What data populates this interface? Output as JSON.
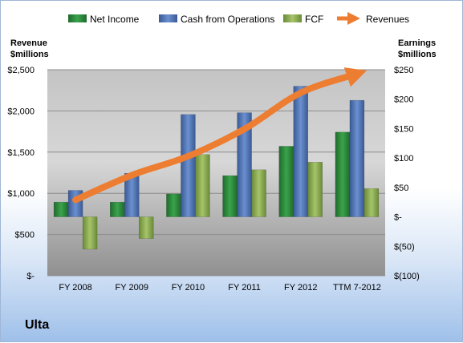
{
  "company_label": "Ulta",
  "chart_data": {
    "type": "bar",
    "categories": [
      "FY 2008",
      "FY 2009",
      "FY 2010",
      "FY 2011",
      "FY 2012",
      "TTM 7-2012"
    ],
    "series": [
      {
        "name": "Net Income",
        "axis": "right",
        "color": "#2e8b3e",
        "values": [
          25,
          25,
          39,
          70,
          120,
          144
        ]
      },
      {
        "name": "Cash from Operations",
        "axis": "right",
        "color": "#4a6fb0",
        "values": [
          45,
          74,
          174,
          177,
          222,
          198
        ]
      },
      {
        "name": "FCF",
        "axis": "right",
        "color": "#8aaa4e",
        "values": [
          -55,
          -37,
          106,
          80,
          93,
          48
        ]
      },
      {
        "name": "Revenues",
        "axis": "left",
        "type": "line",
        "color": "#ed7d31",
        "values": [
          920,
          1220,
          1450,
          1780,
          2220,
          2450
        ]
      }
    ],
    "left_axis": {
      "title_line1": "Revenue",
      "title_line2": "$millions",
      "min": 0,
      "max": 2500,
      "ticks": [
        0,
        500,
        1000,
        1500,
        2000,
        2500
      ],
      "tick_labels": [
        "$-",
        "$500",
        "$1,000",
        "$1,500",
        "$2,000",
        "$2,500"
      ]
    },
    "right_axis": {
      "title_line1": "Earnings",
      "title_line2": "$millions",
      "min": -100,
      "max": 250,
      "ticks": [
        -100,
        -50,
        0,
        50,
        100,
        150,
        200,
        250
      ],
      "tick_labels": [
        "$(100)",
        "$(50)",
        "$-",
        "$50",
        "$100",
        "$150",
        "$200",
        "$250"
      ]
    },
    "grid": true,
    "legend_position": "top"
  }
}
